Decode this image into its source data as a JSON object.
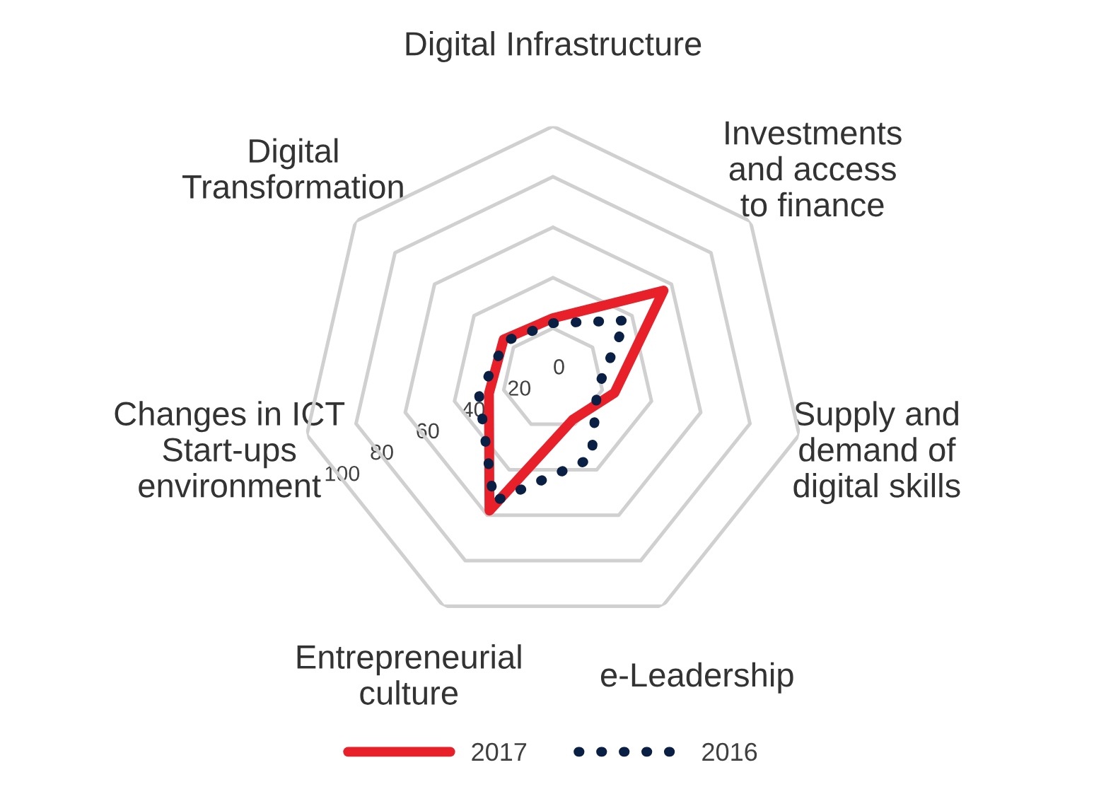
{
  "chart_data": {
    "type": "radar",
    "categories": [
      "Digital Infrastructure",
      "Investments\nand access\nto finance",
      "Supply and\ndemand of\ndigital skills",
      "e-Leadership",
      "Entrepreneurial\nculture",
      "Changes in ICT\nStart-ups\nenvironment",
      "Digital\nTransformation"
    ],
    "series": [
      {
        "name": "2017",
        "color": "#e8202a",
        "line_style": "solid",
        "values": [
          24,
          56,
          25,
          18,
          58,
          26,
          25
        ]
      },
      {
        "name": "2016",
        "color": "#0a1f44",
        "line_style": "dotted",
        "values": [
          22,
          37,
          18,
          35,
          54,
          30,
          24
        ]
      }
    ],
    "ylim": [
      0,
      100
    ],
    "yticks": [
      0,
      20,
      40,
      60,
      80,
      100
    ],
    "grid": true,
    "legend": "bottom"
  }
}
